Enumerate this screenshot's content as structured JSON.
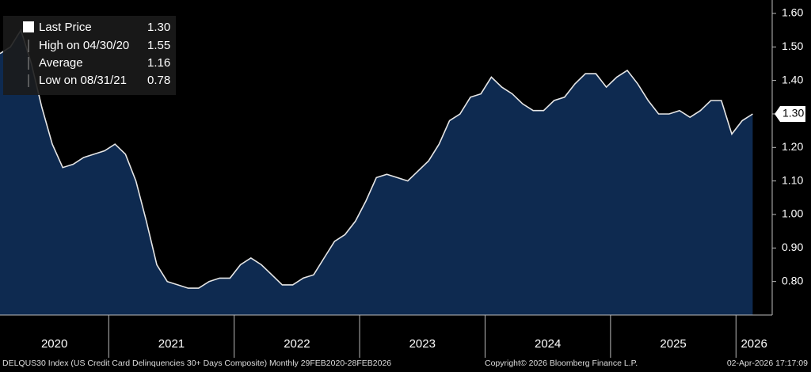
{
  "chart_data": {
    "type": "area",
    "series": [
      {
        "name": "Last Price",
        "color": "#e6e6e6",
        "fill": "#0e2a50",
        "values": [
          1.48,
          1.5,
          1.55,
          1.45,
          1.32,
          1.21,
          1.14,
          1.15,
          1.17,
          1.18,
          1.19,
          1.21,
          1.18,
          1.1,
          0.98,
          0.85,
          0.8,
          0.79,
          0.78,
          0.78,
          0.8,
          0.81,
          0.81,
          0.85,
          0.87,
          0.85,
          0.82,
          0.79,
          0.79,
          0.81,
          0.82,
          0.87,
          0.92,
          0.94,
          0.98,
          1.04,
          1.11,
          1.12,
          1.11,
          1.1,
          1.13,
          1.16,
          1.21,
          1.28,
          1.3,
          1.35,
          1.36,
          1.41,
          1.38,
          1.36,
          1.33,
          1.31,
          1.31,
          1.34,
          1.35,
          1.39,
          1.42,
          1.42,
          1.38,
          1.41,
          1.43,
          1.39,
          1.34,
          1.3,
          1.3,
          1.31,
          1.29,
          1.31,
          1.34,
          1.34,
          1.24,
          1.28,
          1.3
        ]
      }
    ],
    "last_value_label": "1.30",
    "stats": [
      {
        "name": "High on 04/30/20",
        "value": "1.55"
      },
      {
        "name": "Average",
        "value": "1.16"
      },
      {
        "name": "Low on 08/31/21",
        "value": "0.78"
      }
    ],
    "year_labels": [
      "2020",
      "2021",
      "2022",
      "2023",
      "2024",
      "2025",
      "2026"
    ],
    "ylim": [
      0.7,
      1.64
    ],
    "yticks": [
      {
        "value": 0.8,
        "label": "0.80"
      },
      {
        "value": 0.9,
        "label": "0.90"
      },
      {
        "value": 1.0,
        "label": "1.00"
      },
      {
        "value": 1.1,
        "label": "1.10"
      },
      {
        "value": 1.2,
        "label": "1.20"
      },
      {
        "value": 1.3,
        "label": "1.30"
      },
      {
        "value": 1.4,
        "label": "1.40"
      },
      {
        "value": 1.5,
        "label": "1.50"
      },
      {
        "value": 1.6,
        "label": "1.60"
      }
    ],
    "footer": {
      "description": "DELQUS30 Index (US Credit Card Delinquencies 30+ Days Composite) Monthly 29FEB2020-28FEB2026",
      "copyright": "Copyright© 2026 Bloomberg Finance L.P.",
      "timestamp": "02-Apr-2026 17:17:09"
    }
  }
}
